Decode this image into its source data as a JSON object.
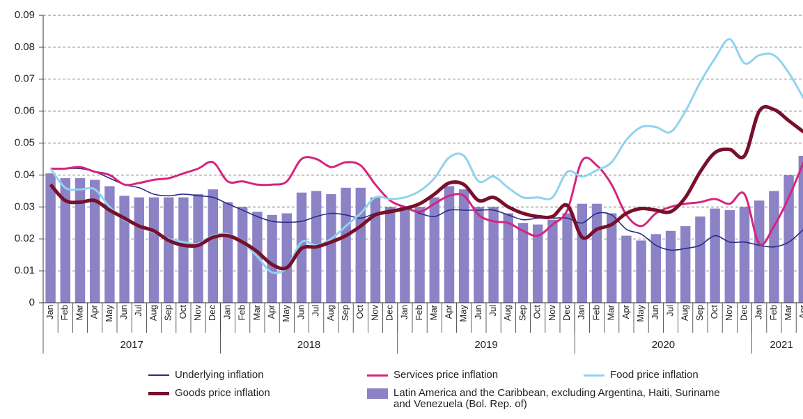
{
  "chart_data": {
    "type": "combo",
    "categories": [
      "Jan",
      "Feb",
      "Mar",
      "Apr",
      "May",
      "Jun",
      "Jul",
      "Aug",
      "Sep",
      "Oct",
      "Nov",
      "Dec",
      "Jan",
      "Feb",
      "Mar",
      "Apr",
      "May",
      "Jun",
      "Jul",
      "Aug",
      "Sep",
      "Oct",
      "Nov",
      "Dec",
      "Jan",
      "Feb",
      "Mar",
      "Apr",
      "May",
      "Jun",
      "Jul",
      "Aug",
      "Sep",
      "Oct",
      "Nov",
      "Dec",
      "Jan",
      "Feb",
      "Mar",
      "Apr",
      "May",
      "Jun",
      "Jul",
      "Aug",
      "Sep",
      "Oct",
      "Nov",
      "Dec",
      "Jan",
      "Feb",
      "Mar",
      "Apr"
    ],
    "groups": [
      {
        "label": "2017",
        "span": 12
      },
      {
        "label": "2018",
        "span": 12
      },
      {
        "label": "2019",
        "span": 12
      },
      {
        "label": "2020",
        "span": 12
      },
      {
        "label": "2021",
        "span": 4
      }
    ],
    "ylim": [
      0,
      0.09
    ],
    "yticks": [
      0,
      0.01,
      0.02,
      0.03,
      0.04,
      0.05,
      0.06,
      0.07,
      0.08,
      0.09
    ],
    "grid": true,
    "series": [
      {
        "name": "Latin America and the Caribbean, excluding Argentina, Haiti, Suriname and Venezuela (Bol. Rep. of)",
        "type": "bar",
        "color": "#8c82c6",
        "values": [
          0.0405,
          0.039,
          0.039,
          0.0385,
          0.0365,
          0.0335,
          0.033,
          0.033,
          0.033,
          0.033,
          0.034,
          0.0355,
          0.0315,
          0.03,
          0.0285,
          0.0275,
          0.028,
          0.0345,
          0.035,
          0.034,
          0.036,
          0.036,
          0.033,
          0.03,
          0.03,
          0.03,
          0.033,
          0.0365,
          0.0355,
          0.03,
          0.03,
          0.028,
          0.025,
          0.0245,
          0.026,
          0.028,
          0.031,
          0.031,
          0.028,
          0.021,
          0.0195,
          0.0215,
          0.0225,
          0.024,
          0.027,
          0.0295,
          0.029,
          0.03,
          0.032,
          0.035,
          0.04,
          0.046
        ]
      },
      {
        "name": "Underlying inflation",
        "type": "line",
        "color": "#2b2a86",
        "values": [
          0.042,
          0.042,
          0.042,
          0.041,
          0.039,
          0.037,
          0.036,
          0.034,
          0.0335,
          0.034,
          0.0335,
          0.033,
          0.031,
          0.029,
          0.027,
          0.0255,
          0.0252,
          0.0255,
          0.027,
          0.028,
          0.0275,
          0.0265,
          0.028,
          0.029,
          0.0295,
          0.028,
          0.027,
          0.029,
          0.029,
          0.029,
          0.029,
          0.0275,
          0.026,
          0.0265,
          0.0265,
          0.0265,
          0.025,
          0.028,
          0.0275,
          0.023,
          0.0215,
          0.018,
          0.0165,
          0.017,
          0.018,
          0.021,
          0.019,
          0.019,
          0.018,
          0.0175,
          0.019,
          0.023
        ]
      },
      {
        "name": "Services price inflation",
        "type": "line",
        "color": "#d6247e",
        "values": [
          0.042,
          0.042,
          0.0425,
          0.041,
          0.04,
          0.037,
          0.0375,
          0.0385,
          0.039,
          0.0405,
          0.042,
          0.044,
          0.038,
          0.038,
          0.037,
          0.037,
          0.038,
          0.045,
          0.045,
          0.0425,
          0.044,
          0.043,
          0.037,
          0.032,
          0.03,
          0.0285,
          0.031,
          0.0335,
          0.0335,
          0.0275,
          0.0255,
          0.025,
          0.0225,
          0.021,
          0.0245,
          0.029,
          0.0445,
          0.043,
          0.037,
          0.0275,
          0.024,
          0.028,
          0.03,
          0.031,
          0.0315,
          0.0325,
          0.031,
          0.034,
          0.0185,
          0.024,
          0.033,
          0.044
        ]
      },
      {
        "name": "Food price inflation",
        "type": "line",
        "color": "#8fd3ef",
        "values": [
          0.042,
          0.036,
          0.0355,
          0.0355,
          0.03,
          0.026,
          0.024,
          0.022,
          0.02,
          0.019,
          0.0185,
          0.021,
          0.0215,
          0.019,
          0.0145,
          0.0095,
          0.011,
          0.019,
          0.018,
          0.02,
          0.024,
          0.028,
          0.033,
          0.0325,
          0.033,
          0.035,
          0.039,
          0.0455,
          0.046,
          0.038,
          0.0395,
          0.036,
          0.033,
          0.033,
          0.033,
          0.041,
          0.0395,
          0.0415,
          0.044,
          0.051,
          0.055,
          0.055,
          0.0535,
          0.06,
          0.069,
          0.0765,
          0.0825,
          0.075,
          0.0775,
          0.0775,
          0.072,
          0.064
        ]
      },
      {
        "name": "Goods price inflation",
        "type": "line",
        "color": "#78102b",
        "values": [
          0.037,
          0.032,
          0.0315,
          0.032,
          0.029,
          0.0265,
          0.024,
          0.0225,
          0.0195,
          0.018,
          0.018,
          0.0205,
          0.021,
          0.019,
          0.016,
          0.012,
          0.011,
          0.017,
          0.0175,
          0.019,
          0.021,
          0.024,
          0.0275,
          0.0285,
          0.0295,
          0.031,
          0.034,
          0.0375,
          0.037,
          0.032,
          0.033,
          0.03,
          0.028,
          0.027,
          0.027,
          0.0305,
          0.0205,
          0.023,
          0.0245,
          0.028,
          0.0295,
          0.029,
          0.0285,
          0.033,
          0.041,
          0.047,
          0.048,
          0.046,
          0.06,
          0.0605,
          0.057,
          0.0535
        ]
      }
    ]
  }
}
